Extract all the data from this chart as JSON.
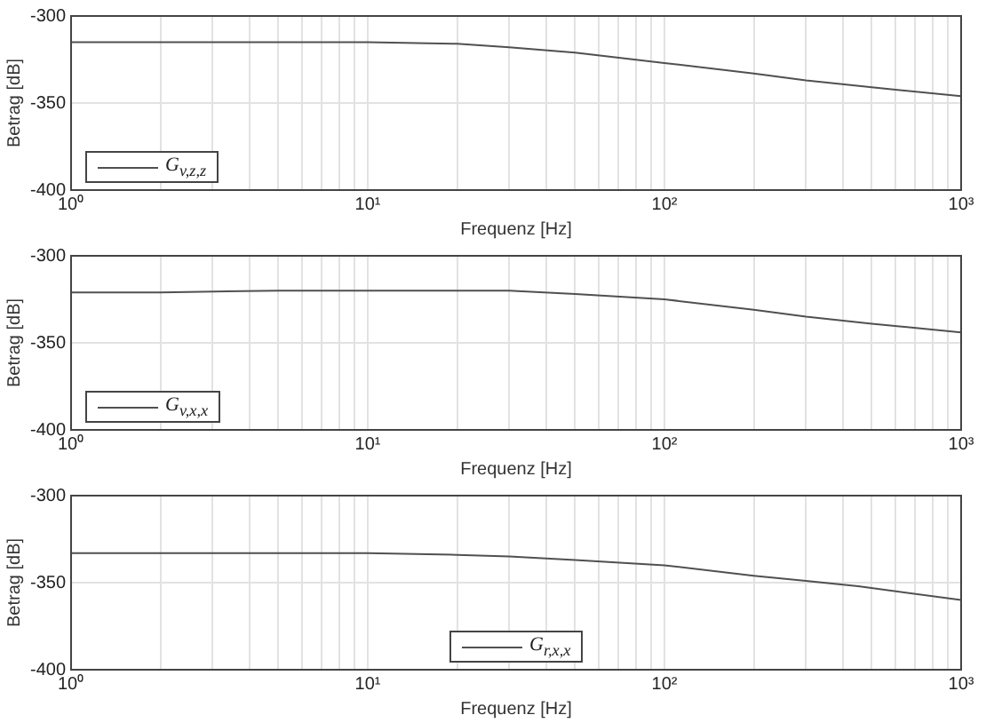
{
  "chart_data": [
    {
      "type": "line",
      "xlabel": "Frequenz [Hz]",
      "ylabel": "Betrag [dB]",
      "x": [
        1,
        2,
        5,
        10,
        20,
        30,
        50,
        100,
        200,
        300,
        500,
        1000
      ],
      "series": [
        {
          "name": "G$_{v,z,z}$",
          "color": "#505050",
          "values": [
            -315,
            -315,
            -315,
            -315,
            -316,
            -318,
            -321,
            -327,
            -333,
            -337,
            -341,
            -346
          ]
        }
      ],
      "xlim": [
        1,
        1000
      ],
      "ylim": [
        -400,
        -300
      ],
      "log": "x",
      "legend": "bottom left",
      "grid": true,
      "xticks": [
        {
          "value": 1,
          "label": "10⁰"
        },
        {
          "value": 2,
          "label": null
        },
        {
          "value": 3,
          "label": null
        },
        {
          "value": 4,
          "label": null
        },
        {
          "value": 5,
          "label": null
        },
        {
          "value": 6,
          "label": null
        },
        {
          "value": 7,
          "label": null
        },
        {
          "value": 8,
          "label": null
        },
        {
          "value": 9,
          "label": null
        },
        {
          "value": 10,
          "label": "10¹"
        },
        {
          "value": 20,
          "label": null
        },
        {
          "value": 30,
          "label": null
        },
        {
          "value": 40,
          "label": null
        },
        {
          "value": 50,
          "label": null
        },
        {
          "value": 60,
          "label": null
        },
        {
          "value": 70,
          "label": null
        },
        {
          "value": 80,
          "label": null
        },
        {
          "value": 90,
          "label": null
        },
        {
          "value": 100,
          "label": "10²"
        },
        {
          "value": 200,
          "label": null
        },
        {
          "value": 300,
          "label": null
        },
        {
          "value": 400,
          "label": null
        },
        {
          "value": 500,
          "label": null
        },
        {
          "value": 600,
          "label": null
        },
        {
          "value": 700,
          "label": null
        },
        {
          "value": 800,
          "label": null
        },
        {
          "value": 900,
          "label": null
        },
        {
          "value": 1000,
          "label": "10³"
        }
      ],
      "yticks": [
        -400,
        -350,
        -300
      ]
    },
    {
      "type": "line",
      "xlabel": "Frequenz [Hz]",
      "ylabel": "Betrag [dB]",
      "x": [
        1,
        2,
        5,
        10,
        20,
        30,
        50,
        100,
        200,
        300,
        500,
        1000
      ],
      "series": [
        {
          "name": "G$_{v,x,x}$",
          "color": "#505050",
          "values": [
            -321,
            -321,
            -320,
            -320,
            -320,
            -320,
            -322,
            -325,
            -331,
            -335,
            -339,
            -344
          ]
        }
      ],
      "xlim": [
        1,
        1000
      ],
      "ylim": [
        -400,
        -300
      ],
      "log": "x",
      "legend": "bottom left",
      "grid": true,
      "xticks": [
        {
          "value": 1,
          "label": "10⁰"
        },
        {
          "value": 2,
          "label": null
        },
        {
          "value": 3,
          "label": null
        },
        {
          "value": 4,
          "label": null
        },
        {
          "value": 5,
          "label": null
        },
        {
          "value": 6,
          "label": null
        },
        {
          "value": 7,
          "label": null
        },
        {
          "value": 8,
          "label": null
        },
        {
          "value": 9,
          "label": null
        },
        {
          "value": 10,
          "label": "10¹"
        },
        {
          "value": 20,
          "label": null
        },
        {
          "value": 30,
          "label": null
        },
        {
          "value": 40,
          "label": null
        },
        {
          "value": 50,
          "label": null
        },
        {
          "value": 60,
          "label": null
        },
        {
          "value": 70,
          "label": null
        },
        {
          "value": 80,
          "label": null
        },
        {
          "value": 90,
          "label": null
        },
        {
          "value": 100,
          "label": "10²"
        },
        {
          "value": 200,
          "label": null
        },
        {
          "value": 300,
          "label": null
        },
        {
          "value": 400,
          "label": null
        },
        {
          "value": 500,
          "label": null
        },
        {
          "value": 600,
          "label": null
        },
        {
          "value": 700,
          "label": null
        },
        {
          "value": 800,
          "label": null
        },
        {
          "value": 900,
          "label": null
        },
        {
          "value": 1000,
          "label": "10³"
        }
      ],
      "yticks": [
        -400,
        -350,
        -300
      ]
    },
    {
      "type": "line",
      "xlabel": "Frequenz [Hz]",
      "ylabel": "Betrag [dB]",
      "x": [
        1,
        2,
        5,
        10,
        20,
        30,
        50,
        100,
        200,
        300,
        450,
        1000
      ],
      "series": [
        {
          "name": "G$_{r,x,x}$",
          "color": "#505050",
          "values": [
            -333,
            -333,
            -333,
            -333,
            -334,
            -335,
            -337,
            -340,
            -346,
            -349,
            -352,
            -360
          ]
        }
      ],
      "xlim": [
        1,
        1000
      ],
      "ylim": [
        -400,
        -300
      ],
      "log": "x",
      "legend": "bottom",
      "grid": true,
      "xticks": [
        {
          "value": 1,
          "label": "10⁰"
        },
        {
          "value": 2,
          "label": null
        },
        {
          "value": 3,
          "label": null
        },
        {
          "value": 4,
          "label": null
        },
        {
          "value": 5,
          "label": null
        },
        {
          "value": 6,
          "label": null
        },
        {
          "value": 7,
          "label": null
        },
        {
          "value": 8,
          "label": null
        },
        {
          "value": 9,
          "label": null
        },
        {
          "value": 10,
          "label": "10¹"
        },
        {
          "value": 20,
          "label": null
        },
        {
          "value": 30,
          "label": null
        },
        {
          "value": 40,
          "label": null
        },
        {
          "value": 50,
          "label": null
        },
        {
          "value": 60,
          "label": null
        },
        {
          "value": 70,
          "label": null
        },
        {
          "value": 80,
          "label": null
        },
        {
          "value": 90,
          "label": null
        },
        {
          "value": 100,
          "label": "10²"
        },
        {
          "value": 200,
          "label": null
        },
        {
          "value": 300,
          "label": null
        },
        {
          "value": 400,
          "label": null
        },
        {
          "value": 500,
          "label": null
        },
        {
          "value": 600,
          "label": null
        },
        {
          "value": 700,
          "label": null
        },
        {
          "value": 800,
          "label": null
        },
        {
          "value": 900,
          "label": null
        },
        {
          "value": 1000,
          "label": "10³"
        }
      ],
      "yticks": [
        -400,
        -350,
        -300
      ]
    }
  ]
}
